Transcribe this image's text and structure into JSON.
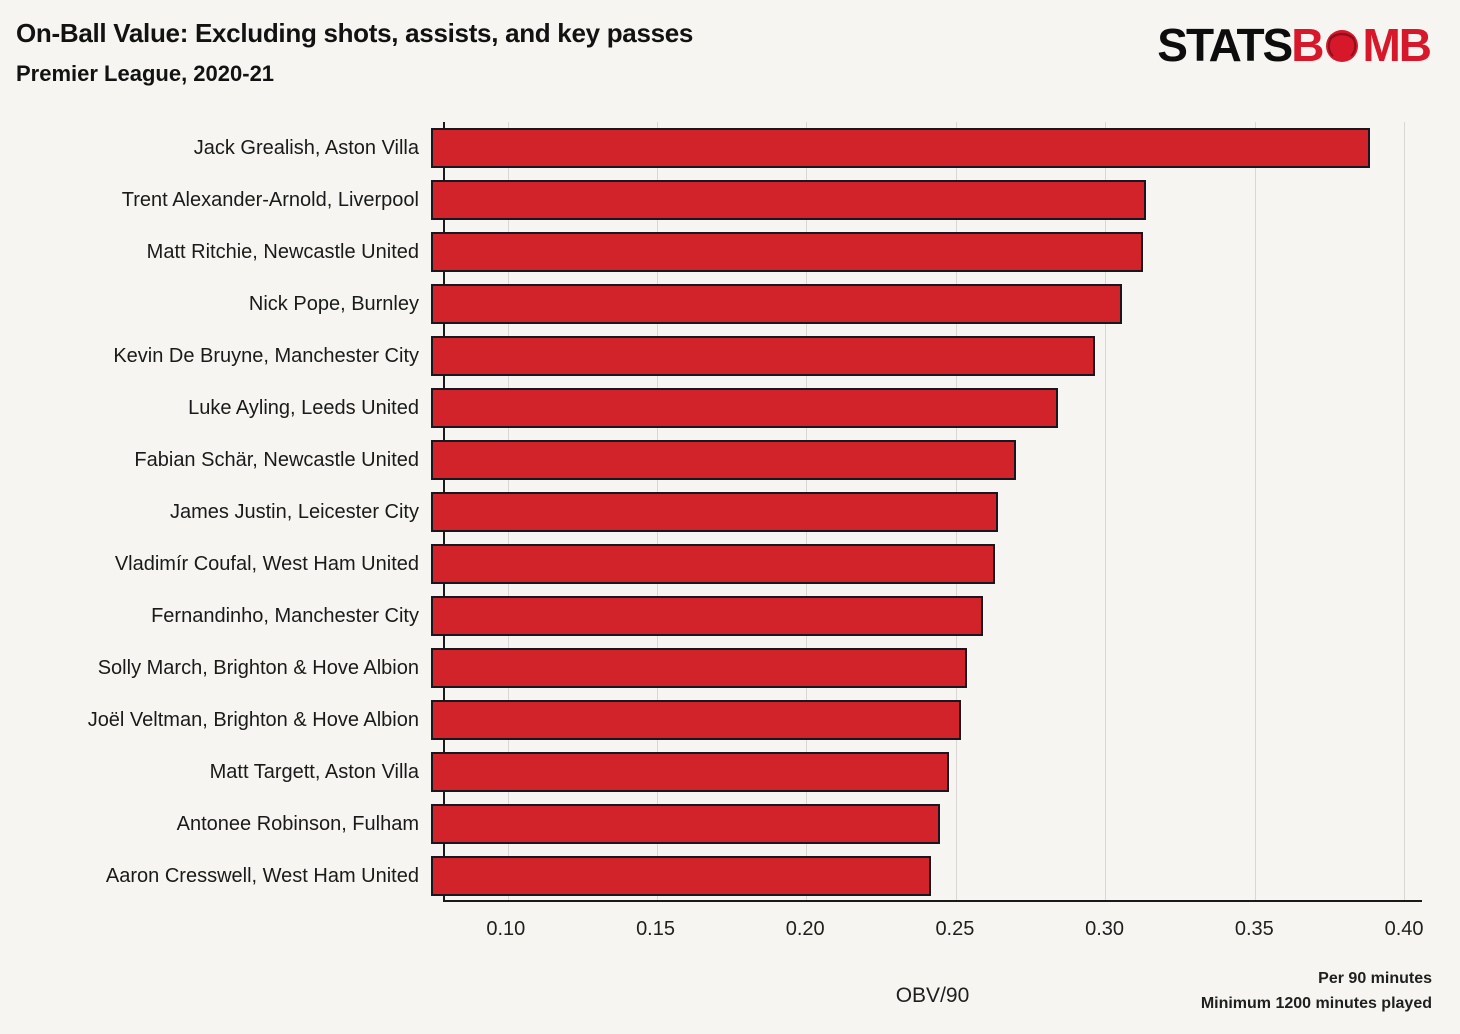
{
  "header": {
    "logo": {
      "stats": "STATS",
      "b": "B",
      "mb": "MB"
    }
  },
  "colors": {
    "bar": "#d2232a",
    "bar_edge": "#17171f",
    "logo_red": "#d7182a",
    "background": "#f6f5f1",
    "gridline": "#d8d7d2"
  },
  "chart_data": {
    "type": "bar",
    "orientation": "horizontal",
    "title": "On-Ball Value: Excluding shots, assists, and key passes",
    "subtitle": "Premier League, 2020-21",
    "xlabel": "OBV/90",
    "categories": [
      "Jack Grealish, Aston Villa",
      "Trent Alexander-Arnold, Liverpool",
      "Matt Ritchie, Newcastle United",
      "Nick Pope, Burnley",
      "Kevin De Bruyne, Manchester City",
      "Luke Ayling, Leeds United",
      "Fabian Schär, Newcastle United",
      "James Justin, Leicester City",
      "Vladimír Coufal, West Ham United",
      "Fernandinho, Manchester City",
      "Solly March, Brighton & Hove Albion",
      "Joël Veltman, Brighton & Hove Albion",
      "Matt Targett, Aston Villa",
      "Antonee Robinson, Fulham",
      "Aaron Cresswell, West Ham United"
    ],
    "values": [
      0.389,
      0.315,
      0.314,
      0.307,
      0.298,
      0.286,
      0.272,
      0.266,
      0.265,
      0.261,
      0.256,
      0.254,
      0.25,
      0.247,
      0.244
    ],
    "xlim": [
      0.079,
      0.406
    ],
    "xticks": [
      0.1,
      0.15,
      0.2,
      0.25,
      0.3,
      0.35,
      0.4
    ],
    "xtick_labels": [
      "0.10",
      "0.15",
      "0.20",
      "0.25",
      "0.30",
      "0.35",
      "0.40"
    ],
    "grid": true,
    "legend": null,
    "footnotes": [
      "Per 90 minutes",
      "Minimum 1200 minutes played"
    ]
  }
}
